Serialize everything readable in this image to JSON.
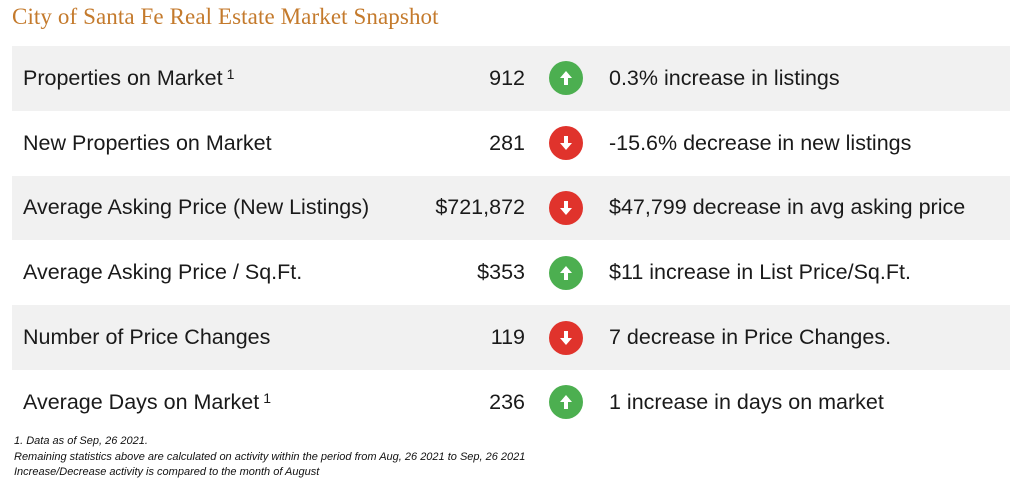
{
  "title": "City of Santa Fe Real Estate Market Snapshot",
  "rows": [
    {
      "label": "Properties on Market",
      "footnote": "1",
      "value": "912",
      "direction": "up",
      "change": "0.3% increase in listings"
    },
    {
      "label": "New Properties on Market",
      "footnote": "",
      "value": "281",
      "direction": "down",
      "change": "-15.6% decrease in new listings"
    },
    {
      "label": "Average Asking Price (New Listings)",
      "footnote": "",
      "value": "$721,872",
      "direction": "down",
      "change": "$47,799 decrease in avg asking price"
    },
    {
      "label": "Average Asking Price / Sq.Ft.",
      "footnote": "",
      "value": "$353",
      "direction": "up",
      "change": "$11 increase in List Price/Sq.Ft."
    },
    {
      "label": "Number of Price Changes",
      "footnote": "",
      "value": "119",
      "direction": "down",
      "change": "7 decrease in Price Changes."
    },
    {
      "label": "Average Days on Market",
      "footnote": "1",
      "value": "236",
      "direction": "up",
      "change": "1 increase in days on market"
    }
  ],
  "icons": {
    "up": "arrow-up-circle-icon",
    "down": "arrow-down-circle-icon"
  },
  "colors": {
    "title": "#c47a2c",
    "up": "#4caf50",
    "down": "#e0332c",
    "row_shade": "#f1f1f1"
  },
  "notes": [
    "1. Data as of Sep, 26 2021.",
    "Remaining statistics above are calculated on activity within the period from Aug, 26 2021 to Sep, 26 2021",
    "Increase/Decrease activity is compared to the month of August"
  ]
}
